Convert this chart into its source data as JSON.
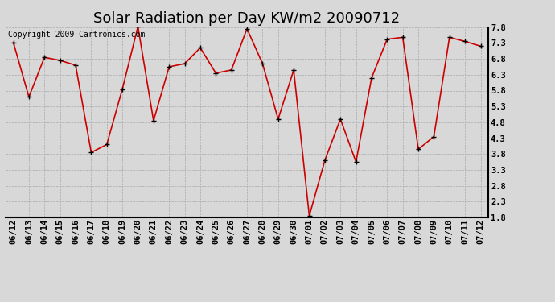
{
  "title": "Solar Radiation per Day KW/m2 20090712",
  "copyright_text": "Copyright 2009 Cartronics.com",
  "dates": [
    "06/12",
    "06/13",
    "06/14",
    "06/15",
    "06/16",
    "06/17",
    "06/18",
    "06/19",
    "06/20",
    "06/21",
    "06/22",
    "06/23",
    "06/24",
    "06/25",
    "06/26",
    "06/27",
    "06/28",
    "06/29",
    "06/30",
    "07/01",
    "07/02",
    "07/03",
    "07/04",
    "07/05",
    "07/06",
    "07/07",
    "07/08",
    "07/09",
    "07/10",
    "07/11",
    "07/12"
  ],
  "values": [
    7.32,
    5.6,
    6.85,
    6.75,
    6.6,
    3.85,
    4.1,
    5.85,
    7.82,
    4.85,
    6.55,
    6.65,
    7.15,
    6.35,
    6.45,
    7.75,
    6.65,
    4.9,
    6.45,
    1.85,
    3.6,
    4.9,
    3.55,
    6.2,
    7.42,
    7.48,
    3.95,
    4.35,
    7.48,
    7.35,
    7.2
  ],
  "line_color": "#cc0000",
  "marker_color": "#000000",
  "bg_color": "#d8d8d8",
  "grid_color": "#aaaaaa",
  "ylim": [
    1.8,
    7.8
  ],
  "yticks": [
    1.8,
    2.3,
    2.8,
    3.3,
    3.8,
    4.3,
    4.8,
    5.3,
    5.8,
    6.3,
    6.8,
    7.3,
    7.8
  ],
  "title_fontsize": 13,
  "copyright_fontsize": 7,
  "tick_fontsize": 7.5
}
